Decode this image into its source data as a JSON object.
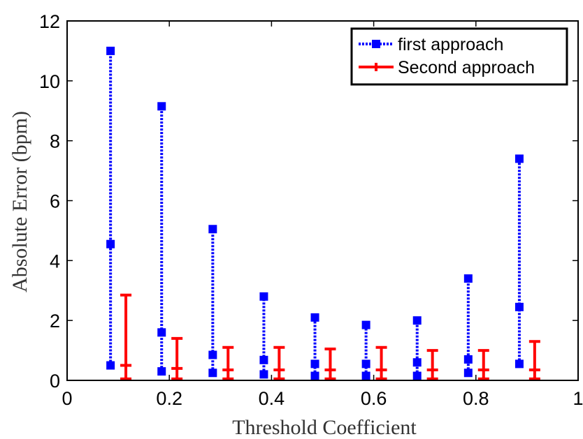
{
  "chart_data": {
    "type": "scatter",
    "title": "",
    "xlabel": "Threshold Coefficient",
    "ylabel": "Absolute Error (bpm)",
    "xlim": [
      0,
      1
    ],
    "ylim": [
      0,
      12
    ],
    "x_ticks": [
      0,
      0.2,
      0.4,
      0.6,
      0.8,
      1
    ],
    "x_tick_labels": [
      "0",
      "0.2",
      "0.4",
      "0.6",
      "0.8",
      "1"
    ],
    "y_ticks": [
      0,
      2,
      4,
      6,
      8,
      10,
      12
    ],
    "y_tick_labels": [
      "0",
      "2",
      "4",
      "6",
      "8",
      "10",
      "12"
    ],
    "grid": false,
    "legend_position": "top-right",
    "series": [
      {
        "name": "first approach",
        "color": "#0000ff",
        "marker": "square",
        "line_style": "dotted",
        "x": [
          0.085,
          0.185,
          0.285,
          0.385,
          0.485,
          0.585,
          0.685,
          0.785,
          0.885
        ],
        "max": [
          11.0,
          9.15,
          5.05,
          2.8,
          2.1,
          1.85,
          2.0,
          3.4,
          7.4
        ],
        "mid": [
          4.55,
          1.6,
          0.85,
          0.68,
          0.55,
          0.55,
          0.6,
          0.7,
          2.45
        ],
        "min": [
          0.5,
          0.3,
          0.25,
          0.2,
          0.15,
          0.15,
          0.15,
          0.25,
          0.55
        ]
      },
      {
        "name": "Second approach",
        "color": "#ff0000",
        "marker": "plus",
        "line_style": "solid",
        "x": [
          0.115,
          0.215,
          0.315,
          0.415,
          0.515,
          0.615,
          0.715,
          0.815,
          0.915
        ],
        "max": [
          2.85,
          1.4,
          1.1,
          1.1,
          1.05,
          1.1,
          1.0,
          1.0,
          1.3
        ],
        "mid": [
          0.5,
          0.4,
          0.35,
          0.35,
          0.35,
          0.35,
          0.35,
          0.35,
          0.35
        ],
        "min": [
          0.05,
          0.05,
          0.05,
          0.05,
          0.05,
          0.05,
          0.05,
          0.05,
          0.05
        ]
      }
    ]
  }
}
